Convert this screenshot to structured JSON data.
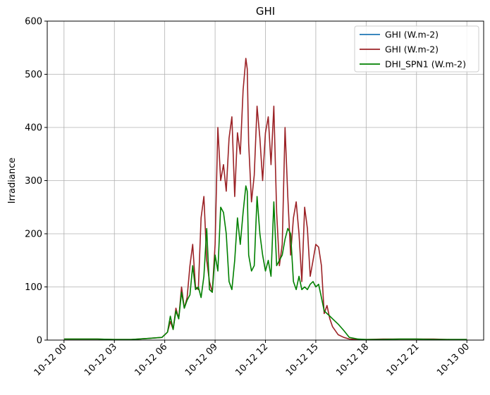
{
  "chart_data": {
    "type": "line",
    "title": "GHI",
    "xlabel": "",
    "ylabel": "Irradiance",
    "ylim": [
      0,
      600
    ],
    "xlim": [
      "2023-10-11T23:00",
      "2023-10-13T01:00"
    ],
    "grid": true,
    "legend_position": "top-right",
    "y_ticks": [
      "0",
      "100",
      "200",
      "300",
      "400",
      "500",
      "600"
    ],
    "x_ticks": [
      "10-12 00",
      "10-12 03",
      "10-12 06",
      "10-12 09",
      "10-12 12",
      "10-12 15",
      "10-12 18",
      "10-12 21",
      "10-13 00"
    ],
    "x_tick_times": [
      "2023-10-12T00:00",
      "2023-10-12T03:00",
      "2023-10-12T06:00",
      "2023-10-12T09:00",
      "2023-10-12T12:00",
      "2023-10-12T15:00",
      "2023-10-12T18:00",
      "2023-10-12T21:00",
      "2023-10-13T00:00"
    ],
    "series": [
      {
        "name": "GHI (W.m-2)",
        "color": "#1f77b4",
        "x": [],
        "values": []
      },
      {
        "name": "GHI (W.m-2)",
        "color": "#9b2226",
        "x": [
          "2023-10-12T00:00",
          "2023-10-12T00:30",
          "2023-10-12T01:00",
          "2023-10-12T02:00",
          "2023-10-12T03:00",
          "2023-10-12T04:00",
          "2023-10-12T05:00",
          "2023-10-12T05:50",
          "2023-10-12T06:00",
          "2023-10-12T06:10",
          "2023-10-12T06:20",
          "2023-10-12T06:30",
          "2023-10-12T06:40",
          "2023-10-12T06:50",
          "2023-10-12T07:00",
          "2023-10-12T07:10",
          "2023-10-12T07:20",
          "2023-10-12T07:30",
          "2023-10-12T07:40",
          "2023-10-12T07:50",
          "2023-10-12T08:00",
          "2023-10-12T08:10",
          "2023-10-12T08:20",
          "2023-10-12T08:30",
          "2023-10-12T08:40",
          "2023-10-12T08:50",
          "2023-10-12T09:00",
          "2023-10-12T09:10",
          "2023-10-12T09:20",
          "2023-10-12T09:30",
          "2023-10-12T09:40",
          "2023-10-12T09:50",
          "2023-10-12T10:00",
          "2023-10-12T10:10",
          "2023-10-12T10:20",
          "2023-10-12T10:30",
          "2023-10-12T10:40",
          "2023-10-12T10:50",
          "2023-10-12T10:55",
          "2023-10-12T11:00",
          "2023-10-12T11:10",
          "2023-10-12T11:20",
          "2023-10-12T11:30",
          "2023-10-12T11:40",
          "2023-10-12T11:50",
          "2023-10-12T12:00",
          "2023-10-12T12:10",
          "2023-10-12T12:20",
          "2023-10-12T12:30",
          "2023-10-12T12:40",
          "2023-10-12T12:50",
          "2023-10-12T13:00",
          "2023-10-12T13:10",
          "2023-10-12T13:20",
          "2023-10-12T13:30",
          "2023-10-12T13:40",
          "2023-10-12T13:50",
          "2023-10-12T14:00",
          "2023-10-12T14:10",
          "2023-10-12T14:20",
          "2023-10-12T14:30",
          "2023-10-12T14:40",
          "2023-10-12T14:50",
          "2023-10-12T15:00",
          "2023-10-12T15:10",
          "2023-10-12T15:20",
          "2023-10-12T15:30",
          "2023-10-12T15:40",
          "2023-10-12T15:50",
          "2023-10-12T16:00",
          "2023-10-12T16:20",
          "2023-10-12T16:40",
          "2023-10-12T17:00",
          "2023-10-12T17:30",
          "2023-10-12T18:00",
          "2023-10-12T19:00",
          "2023-10-12T20:00",
          "2023-10-12T21:00",
          "2023-10-12T22:00",
          "2023-10-12T23:00",
          "2023-10-13T00:00"
        ],
        "values": [
          2,
          2,
          2,
          2,
          1,
          1,
          3,
          5,
          10,
          15,
          35,
          20,
          60,
          40,
          100,
          60,
          80,
          140,
          180,
          100,
          95,
          230,
          270,
          150,
          110,
          90,
          180,
          400,
          300,
          330,
          280,
          380,
          420,
          270,
          390,
          350,
          470,
          530,
          510,
          370,
          260,
          310,
          440,
          380,
          300,
          390,
          420,
          330,
          440,
          240,
          140,
          180,
          400,
          270,
          160,
          230,
          260,
          200,
          110,
          250,
          210,
          120,
          150,
          180,
          175,
          140,
          50,
          65,
          40,
          25,
          10,
          5,
          2,
          1,
          1,
          2,
          2,
          2,
          2,
          1,
          1
        ]
      },
      {
        "name": "DHI_SPN1 (W.m-2)",
        "color": "#008000",
        "x": [
          "2023-10-12T00:00",
          "2023-10-12T00:30",
          "2023-10-12T01:00",
          "2023-10-12T02:00",
          "2023-10-12T03:00",
          "2023-10-12T04:00",
          "2023-10-12T05:00",
          "2023-10-12T05:50",
          "2023-10-12T06:00",
          "2023-10-12T06:10",
          "2023-10-12T06:20",
          "2023-10-12T06:30",
          "2023-10-12T06:40",
          "2023-10-12T06:50",
          "2023-10-12T07:00",
          "2023-10-12T07:10",
          "2023-10-12T07:20",
          "2023-10-12T07:30",
          "2023-10-12T07:40",
          "2023-10-12T07:50",
          "2023-10-12T08:00",
          "2023-10-12T08:10",
          "2023-10-12T08:20",
          "2023-10-12T08:30",
          "2023-10-12T08:40",
          "2023-10-12T08:50",
          "2023-10-12T09:00",
          "2023-10-12T09:10",
          "2023-10-12T09:20",
          "2023-10-12T09:30",
          "2023-10-12T09:40",
          "2023-10-12T09:50",
          "2023-10-12T10:00",
          "2023-10-12T10:10",
          "2023-10-12T10:20",
          "2023-10-12T10:30",
          "2023-10-12T10:40",
          "2023-10-12T10:50",
          "2023-10-12T10:55",
          "2023-10-12T11:00",
          "2023-10-12T11:10",
          "2023-10-12T11:20",
          "2023-10-12T11:30",
          "2023-10-12T11:40",
          "2023-10-12T11:50",
          "2023-10-12T12:00",
          "2023-10-12T12:10",
          "2023-10-12T12:20",
          "2023-10-12T12:30",
          "2023-10-12T12:40",
          "2023-10-12T12:50",
          "2023-10-12T13:00",
          "2023-10-12T13:10",
          "2023-10-12T13:20",
          "2023-10-12T13:30",
          "2023-10-12T13:40",
          "2023-10-12T13:50",
          "2023-10-12T14:00",
          "2023-10-12T14:10",
          "2023-10-12T14:20",
          "2023-10-12T14:30",
          "2023-10-12T14:40",
          "2023-10-12T14:50",
          "2023-10-12T15:00",
          "2023-10-12T15:10",
          "2023-10-12T15:20",
          "2023-10-12T15:30",
          "2023-10-12T15:40",
          "2023-10-12T15:50",
          "2023-10-12T16:00",
          "2023-10-12T16:20",
          "2023-10-12T16:40",
          "2023-10-12T17:00",
          "2023-10-12T17:30",
          "2023-10-12T18:00",
          "2023-10-12T19:00",
          "2023-10-12T20:00",
          "2023-10-12T21:00",
          "2023-10-12T22:00",
          "2023-10-12T23:00",
          "2023-10-13T00:00"
        ],
        "values": [
          2,
          2,
          2,
          2,
          1,
          1,
          3,
          5,
          10,
          15,
          45,
          20,
          55,
          40,
          90,
          60,
          75,
          85,
          140,
          95,
          100,
          80,
          120,
          210,
          95,
          90,
          160,
          130,
          250,
          240,
          200,
          110,
          95,
          150,
          230,
          180,
          240,
          290,
          280,
          160,
          130,
          140,
          270,
          200,
          160,
          130,
          150,
          120,
          260,
          140,
          150,
          160,
          190,
          210,
          200,
          110,
          95,
          120,
          95,
          100,
          95,
          105,
          110,
          100,
          105,
          80,
          55,
          50,
          45,
          40,
          30,
          18,
          5,
          2,
          1,
          1,
          2,
          2,
          1,
          1,
          1
        ]
      }
    ]
  }
}
